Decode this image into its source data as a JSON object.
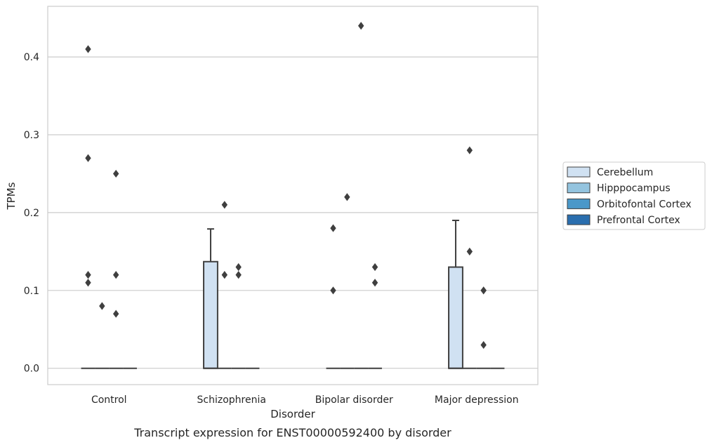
{
  "caption": "Transcript expression for ENST00000592400 by disorder",
  "chart_data": {
    "type": "box",
    "xlabel": "Disorder",
    "ylabel": "TPMs",
    "ylim": [
      -0.021,
      0.465
    ],
    "yticks": [
      0.0,
      0.1,
      0.2,
      0.3,
      0.4
    ],
    "ytick_labels": [
      "0.0",
      "0.1",
      "0.2",
      "0.3",
      "0.4"
    ],
    "grid": "horizontal",
    "legend_position": "right",
    "categories": [
      "Control",
      "Schizophrenia",
      "Bipolar disorder",
      "Major depression"
    ],
    "series": [
      {
        "name": "Cerebellum",
        "color": "#d0e1f2",
        "boxes": [
          {
            "min": 0,
            "q1": 0,
            "median": 0,
            "q3": 0,
            "max": 0,
            "outliers": [
              0.41,
              0.27,
              0.12,
              0.11
            ]
          },
          {
            "min": 0,
            "q1": 0,
            "median": 0,
            "q3": 0.137,
            "max": 0.179,
            "outliers": []
          },
          {
            "min": 0,
            "q1": 0,
            "median": 0,
            "q3": 0,
            "max": 0,
            "outliers": [
              0.18,
              0.1
            ]
          },
          {
            "min": 0,
            "q1": 0,
            "median": 0,
            "q3": 0.13,
            "max": 0.19,
            "outliers": []
          }
        ]
      },
      {
        "name": "Hipppocampus",
        "color": "#94c4df",
        "boxes": [
          {
            "min": 0,
            "q1": 0,
            "median": 0,
            "q3": 0,
            "max": 0,
            "outliers": [
              0.08
            ]
          },
          {
            "min": 0,
            "q1": 0,
            "median": 0,
            "q3": 0,
            "max": 0,
            "outliers": [
              0.21,
              0.12
            ]
          },
          {
            "min": 0,
            "q1": 0,
            "median": 0,
            "q3": 0,
            "max": 0,
            "outliers": [
              0.22
            ]
          },
          {
            "min": 0,
            "q1": 0,
            "median": 0,
            "q3": 0,
            "max": 0,
            "outliers": [
              0.28,
              0.15
            ]
          }
        ]
      },
      {
        "name": "Orbitofontal Cortex",
        "color": "#4a98c9",
        "boxes": [
          {
            "min": 0,
            "q1": 0,
            "median": 0,
            "q3": 0,
            "max": 0,
            "outliers": [
              0.25,
              0.12,
              0.07
            ]
          },
          {
            "min": 0,
            "q1": 0,
            "median": 0,
            "q3": 0,
            "max": 0,
            "outliers": [
              0.13,
              0.12
            ]
          },
          {
            "min": 0,
            "q1": 0,
            "median": 0,
            "q3": 0,
            "max": 0,
            "outliers": [
              0.44
            ]
          },
          {
            "min": 0,
            "q1": 0,
            "median": 0,
            "q3": 0,
            "max": 0,
            "outliers": [
              0.1,
              0.1,
              0.03
            ]
          }
        ]
      },
      {
        "name": "Prefrontal Cortex",
        "color": "#2a6eae",
        "boxes": [
          {
            "min": 0,
            "q1": 0,
            "median": 0,
            "q3": 0,
            "max": 0,
            "outliers": []
          },
          {
            "min": 0,
            "q1": 0,
            "median": 0,
            "q3": 0,
            "max": 0,
            "outliers": []
          },
          {
            "min": 0,
            "q1": 0,
            "median": 0,
            "q3": 0,
            "max": 0,
            "outliers": [
              0.13,
              0.11
            ]
          },
          {
            "min": 0,
            "q1": 0,
            "median": 0,
            "q3": 0,
            "max": 0,
            "outliers": []
          }
        ]
      }
    ]
  }
}
